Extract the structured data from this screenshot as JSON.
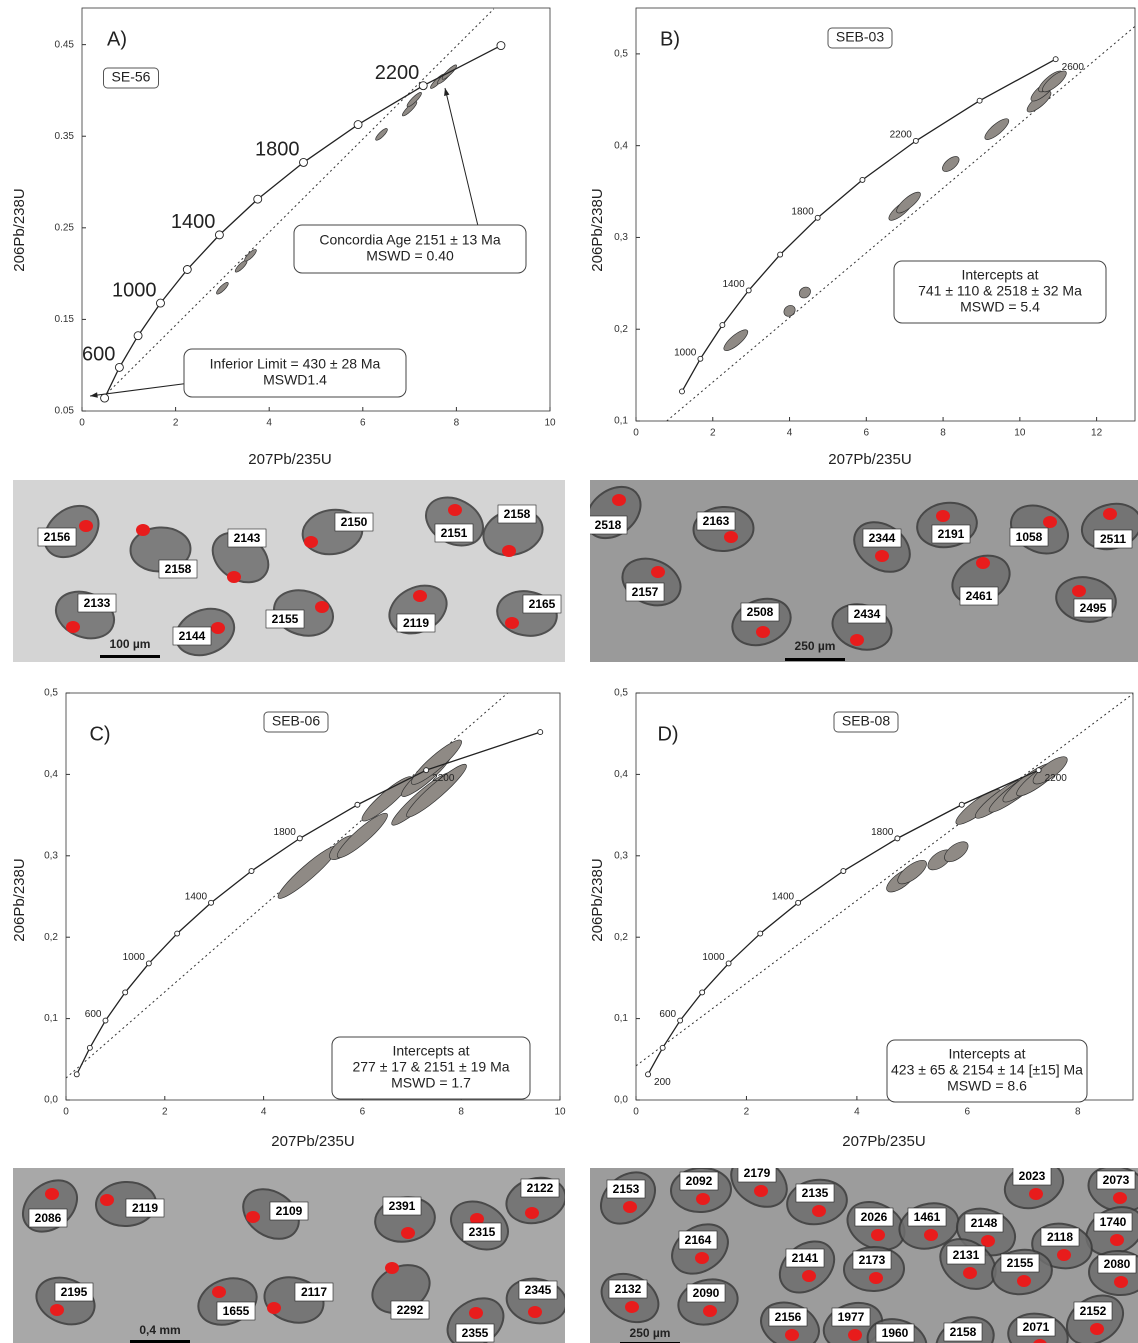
{
  "chart_data": [
    {
      "type": "concordia",
      "panel": "A)",
      "sample": "SE-56",
      "xlabel": "207Pb/235U",
      "ylabel": "206Pb/238U",
      "xlim": [
        0,
        10
      ],
      "xticks": [
        0,
        2,
        4,
        6,
        8,
        10
      ],
      "ylim": [
        0.05,
        0.49
      ],
      "yticks": [
        0.05,
        0.15,
        0.25,
        0.35,
        0.45
      ],
      "concordia": {
        "x": [
          0.483,
          0.799,
          1.198,
          1.677,
          2.25,
          2.936,
          3.755,
          4.733,
          5.899,
          7.291,
          8.952
        ],
        "y": [
          0.0641,
          0.0976,
          0.1322,
          0.1678,
          0.2045,
          0.2423,
          0.2813,
          0.3214,
          0.3627,
          0.4052,
          0.449
        ],
        "labels": [
          null,
          600,
          null,
          1000,
          null,
          1400,
          null,
          1800,
          null,
          2200,
          null
        ]
      },
      "discordia": {
        "x": [
          0.53,
          8.8
        ],
        "y": [
          0.069,
          0.489
        ]
      },
      "ellipses": {
        "x": [
          3.0,
          3.4,
          3.6,
          6.4,
          7.0,
          7.1,
          7.6,
          7.75,
          7.85
        ],
        "y": [
          0.184,
          0.208,
          0.22,
          0.352,
          0.38,
          0.39,
          0.41,
          0.415,
          0.42
        ],
        "x_err": [
          0.12,
          0.12,
          0.12,
          0.12,
          0.15,
          0.15,
          0.15,
          0.15,
          0.15
        ]
      },
      "annotations": [
        {
          "lines": [
            "Concordia Age 2151 ± 13 Ma",
            "MSWD = 0.40"
          ]
        },
        {
          "lines": [
            "Inferior Limit =  430 ± 28 Ma",
            "MSWD1.4"
          ]
        }
      ]
    },
    {
      "type": "concordia",
      "panel": "B)",
      "sample": "SEB-03",
      "xlabel": "207Pb/235U",
      "ylabel": "206Pb/238U",
      "xlim": [
        0,
        13
      ],
      "xticks": [
        0,
        2,
        4,
        6,
        8,
        10,
        12
      ],
      "ylim": [
        0.1,
        0.55
      ],
      "yticks": [
        {
          "value": 0.1,
          "label": "0,1"
        },
        {
          "value": 0.2,
          "label": "0,2"
        },
        {
          "value": 0.3,
          "label": "0,3"
        },
        {
          "value": 0.4,
          "label": "0,4"
        },
        {
          "value": 0.5,
          "label": "0,5"
        }
      ],
      "concordia": {
        "x": [
          1.198,
          1.677,
          2.25,
          2.936,
          3.755,
          4.733,
          5.899,
          7.291,
          8.952,
          10.933
        ],
        "y": [
          0.1322,
          0.1678,
          0.2045,
          0.2423,
          0.2813,
          0.3214,
          0.3627,
          0.4052,
          0.449,
          0.4942
        ],
        "labels": [
          null,
          1000,
          null,
          1400,
          null,
          1800,
          null,
          2200,
          null,
          2600
        ]
      },
      "discordia": {
        "x": [
          0.8,
          13
        ],
        "y": [
          0.1,
          0.53
        ]
      },
      "ellipses": {
        "x": [
          2.6,
          4.0,
          4.4,
          6.9,
          7.1,
          8.2,
          9.4,
          10.5,
          10.6,
          10.8,
          10.9
        ],
        "y": [
          0.188,
          0.22,
          0.24,
          0.33,
          0.338,
          0.38,
          0.418,
          0.448,
          0.46,
          0.47,
          0.47
        ],
        "x_err": [
          0.3,
          0.12,
          0.12,
          0.3,
          0.3,
          0.2,
          0.3,
          0.3,
          0.3,
          0.3,
          0.3
        ]
      },
      "annotations": [
        {
          "lines": [
            "Intercepts at",
            "741 ± 110 & 2518 ± 32 Ma",
            "MSWD = 5.4"
          ]
        }
      ]
    },
    {
      "type": "concordia",
      "panel": "C)",
      "sample": "SEB-06",
      "xlabel": "207Pb/235U",
      "ylabel": "206Pb/238U",
      "xlim": [
        0,
        10
      ],
      "xticks": [
        0,
        2,
        4,
        6,
        8,
        10
      ],
      "ylim": [
        0,
        0.5
      ],
      "yticks": [
        {
          "value": 0,
          "label": "0,0"
        },
        {
          "value": 0.1,
          "label": "0,1"
        },
        {
          "value": 0.2,
          "label": "0,2"
        },
        {
          "value": 0.3,
          "label": "0,3"
        },
        {
          "value": 0.4,
          "label": "0,4"
        },
        {
          "value": 0.5,
          "label": "0,5"
        }
      ],
      "concordia": {
        "x": [
          0.2177,
          0.483,
          0.799,
          1.198,
          1.677,
          2.25,
          2.936,
          3.755,
          4.733,
          5.899,
          7.291,
          9.6
        ],
        "y": [
          0.0315,
          0.0641,
          0.0976,
          0.1322,
          0.1678,
          0.2045,
          0.2423,
          0.2813,
          0.3214,
          0.3627,
          0.4052,
          0.452
        ],
        "labels": [
          null,
          null,
          600,
          null,
          1000,
          null,
          1400,
          null,
          1800,
          null,
          2200,
          null
        ]
      },
      "discordia": {
        "x": [
          0,
          8.94
        ],
        "y": [
          0.027,
          0.5
        ]
      },
      "ellipses": {
        "x": [
          4.9,
          5.6,
          6.0,
          6.5,
          7.2,
          7.5,
          7.3,
          7.5
        ],
        "y": [
          0.28,
          0.31,
          0.325,
          0.37,
          0.37,
          0.38,
          0.4,
          0.415
        ],
        "x_err": [
          0.6,
          0.25,
          0.5,
          0.5,
          0.6,
          0.6,
          0.5,
          0.5
        ]
      },
      "annotations": [
        {
          "lines": [
            "Intercepts at",
            "277 ± 17 & 2151 ± 19 Ma",
            "MSWD = 1.7"
          ]
        }
      ]
    },
    {
      "type": "concordia",
      "panel": "D)",
      "sample": "SEB-08",
      "xlabel": "207Pb/235U",
      "ylabel": "206Pb/238U",
      "xlim": [
        0,
        9
      ],
      "xticks": [
        0,
        2,
        4,
        6,
        8
      ],
      "ylim": [
        0,
        0.5
      ],
      "yticks": [
        {
          "value": 0,
          "label": "0,0"
        },
        {
          "value": 0.1,
          "label": "0,1"
        },
        {
          "value": 0.2,
          "label": "0,2"
        },
        {
          "value": 0.3,
          "label": "0,3"
        },
        {
          "value": 0.4,
          "label": "0,4"
        },
        {
          "value": 0.5,
          "label": "0,5"
        }
      ],
      "concordia": {
        "x": [
          0.2177,
          0.483,
          0.799,
          1.198,
          1.677,
          2.25,
          2.936,
          3.755,
          4.733,
          5.899,
          7.291
        ],
        "y": [
          0.0315,
          0.0641,
          0.0976,
          0.1322,
          0.1678,
          0.2045,
          0.2423,
          0.2813,
          0.3214,
          0.3627,
          0.4052
        ],
        "labels": [
          200,
          null,
          600,
          null,
          1000,
          null,
          1400,
          null,
          1800,
          null,
          2200
        ]
      },
      "discordia": {
        "x": [
          0,
          9
        ],
        "y": [
          0.042,
          0.499
        ]
      },
      "ellipses": {
        "x": [
          4.8,
          5.0,
          5.5,
          5.8,
          6.2,
          6.6,
          6.9,
          7.1,
          7.3,
          7.5
        ],
        "y": [
          0.27,
          0.28,
          0.295,
          0.305,
          0.36,
          0.37,
          0.38,
          0.39,
          0.395,
          0.405
        ],
        "x_err": [
          0.25,
          0.25,
          0.2,
          0.2,
          0.4,
          0.45,
          0.5,
          0.45,
          0.4,
          0.3
        ]
      },
      "annotations": [
        {
          "lines": [
            "Intercepts at",
            "423 ± 65 & 2154 ± 14 [±15] Ma",
            "MSWD = 8.6"
          ]
        }
      ]
    }
  ],
  "photos": [
    {
      "labels": [
        2156,
        2158,
        2143,
        2150,
        2151,
        2158,
        2133,
        2144,
        2155,
        2119,
        2165
      ],
      "scale_bar": "100 µm"
    },
    {
      "labels": [
        2518,
        2163,
        2344,
        2191,
        1058,
        2511,
        2157,
        2508,
        2434,
        2461,
        2495
      ],
      "scale_bar": "250 µm"
    },
    {
      "labels": [
        2086,
        2119,
        2109,
        2391,
        2315,
        2122,
        2195,
        1655,
        2117,
        2292,
        2345,
        2355
      ],
      "scale_bar": "0,4 mm"
    },
    {
      "labels": [
        2153,
        2092,
        2179,
        2135,
        2026,
        1461,
        2148,
        2023,
        2073,
        1740,
        2118,
        2164,
        2080,
        2141,
        2173,
        2131,
        2155,
        2132,
        2090,
        2156,
        1977,
        1960,
        2158,
        2071,
        2152
      ],
      "scale_bar": "250 µm"
    }
  ]
}
